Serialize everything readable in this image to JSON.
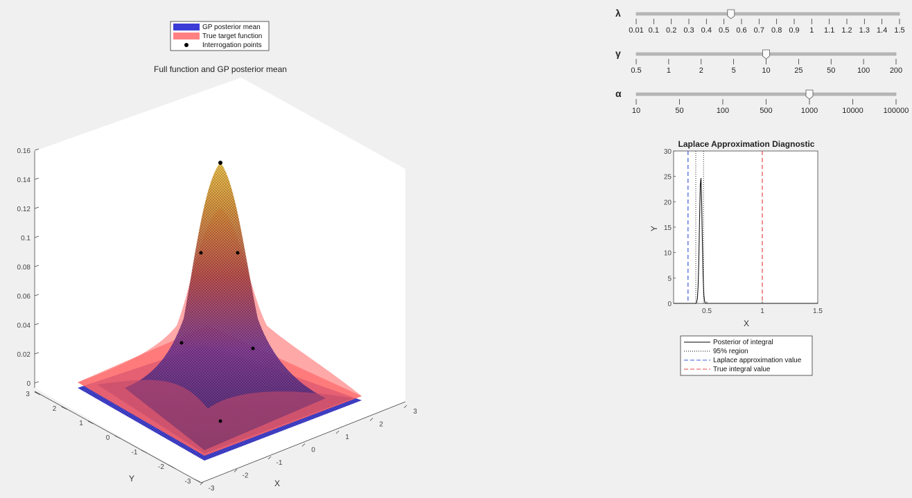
{
  "surface_plot": {
    "title": "Full function and GP posterior mean",
    "legend": [
      {
        "label": "GP posterior mean",
        "color": "#3b3bd6"
      },
      {
        "label": "True target function",
        "color": "#ff8080"
      },
      {
        "label": "Interrogation points",
        "color": "#000000"
      }
    ],
    "z_ticks": [
      "0",
      "0.02",
      "0.04",
      "0.06",
      "0.08",
      "0.1",
      "0.12",
      "0.14",
      "0.16"
    ],
    "y_ticks": [
      "3",
      "2",
      "1",
      "0",
      "-1",
      "-2",
      "-3"
    ],
    "x_ticks": [
      "-3",
      "-2",
      "-1",
      "0",
      "1",
      "2",
      "3"
    ],
    "x_label": "X",
    "y_label": "Y"
  },
  "sliders": [
    {
      "symbol": "λ",
      "ticks": [
        "0.01",
        "0.1",
        "0.2",
        "0.3",
        "0.4",
        "0.5",
        "0.6",
        "0.7",
        "0.8",
        "0.9",
        "1",
        "1.1",
        "1.2",
        "1.3",
        "1.4",
        "1.5"
      ],
      "value_index": 5.4
    },
    {
      "symbol": "γ",
      "ticks": [
        "0.5",
        "1",
        "2",
        "5",
        "10",
        "25",
        "50",
        "100",
        "200"
      ],
      "value_index": 4.0
    },
    {
      "symbol": "α",
      "ticks": [
        "10",
        "50",
        "100",
        "500",
        "1000",
        "10000",
        "100000"
      ],
      "value_index": 4.0
    }
  ],
  "chart_data": {
    "type": "line",
    "title": "Laplace Approximation Diagnostic",
    "xlabel": "X",
    "ylabel": "Y",
    "xlim": [
      0.2,
      1.5
    ],
    "ylim": [
      0,
      30
    ],
    "x_ticks": [
      "0.5",
      "1",
      "1.5"
    ],
    "y_ticks": [
      "0",
      "5",
      "10",
      "15",
      "20",
      "25",
      "30"
    ],
    "posterior": {
      "mean": 0.445,
      "sd": 0.012,
      "peak": 25
    },
    "region_95": [
      0.4,
      0.47
    ],
    "laplace_value": 0.33,
    "true_value": 1.0,
    "legend": [
      {
        "label": "Posterior of integral",
        "color": "#000000",
        "dash": "solid"
      },
      {
        "label": "95% region",
        "color": "#000000",
        "dash": "dotted"
      },
      {
        "label": "Laplace approximation value",
        "color": "#3b5bdb",
        "dash": "dashed"
      },
      {
        "label": "True integral value",
        "color": "#e64545",
        "dash": "dashed"
      }
    ]
  }
}
